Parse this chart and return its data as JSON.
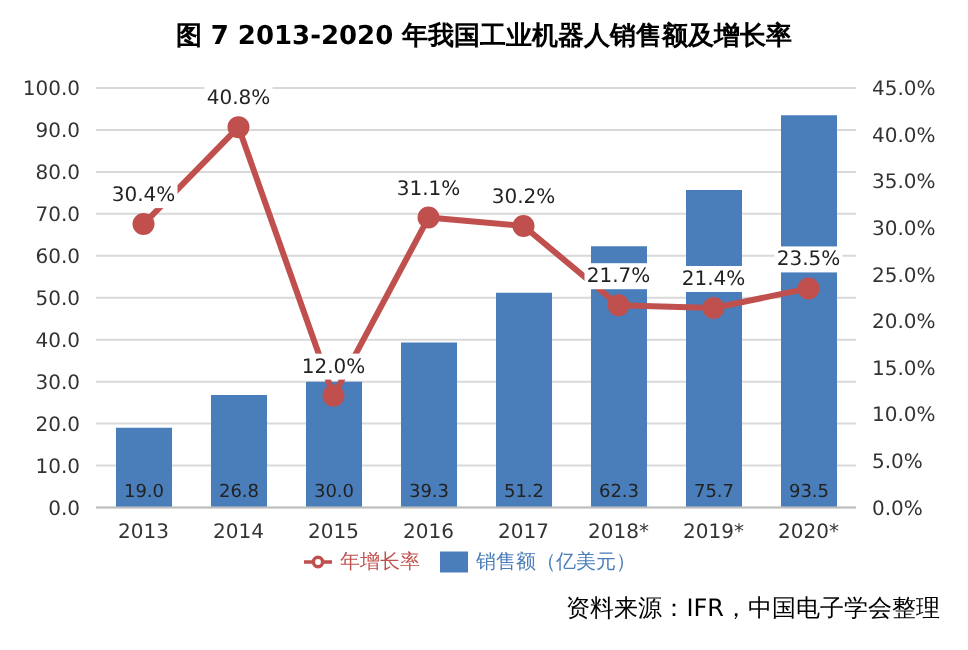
{
  "chart_data": {
    "type": "bar",
    "title": "图 7   2013-2020 年我国工业机器人销售额及增长率",
    "categories": [
      "2013",
      "2014",
      "2015",
      "2016",
      "2017",
      "2018*",
      "2019*",
      "2020*"
    ],
    "series": [
      {
        "name": "销售额（亿美元）",
        "color": "#4a7ebb",
        "values": [
          19.0,
          26.8,
          30.0,
          39.3,
          51.2,
          62.3,
          75.7,
          93.5
        ],
        "value_labels": [
          "19.0",
          "26.8",
          "30.0",
          "39.3",
          "51.2",
          "62.3",
          "75.7",
          "93.5"
        ]
      },
      {
        "name": "年增长率",
        "type": "line",
        "axis": "y2",
        "color": "#c0504d",
        "marker": "circle",
        "values": [
          30.4,
          40.8,
          12.0,
          31.1,
          30.2,
          21.7,
          21.4,
          23.5
        ],
        "value_labels": [
          "30.4%",
          "40.8%",
          "12.0%",
          "31.1%",
          "30.2%",
          "21.7%",
          "21.4%",
          "23.5%"
        ]
      }
    ],
    "ylim": [
      0,
      100
    ],
    "yticks": [
      {
        "value": 0,
        "label": "0.0"
      },
      {
        "value": 10,
        "label": "10.0"
      },
      {
        "value": 20,
        "label": "20.0"
      },
      {
        "value": 30,
        "label": "30.0"
      },
      {
        "value": 40,
        "label": "40.0"
      },
      {
        "value": 50,
        "label": "50.0"
      },
      {
        "value": 60,
        "label": "60.0"
      },
      {
        "value": 70,
        "label": "70.0"
      },
      {
        "value": 80,
        "label": "80.0"
      },
      {
        "value": 90,
        "label": "90.0"
      },
      {
        "value": 100,
        "label": "100.0"
      }
    ],
    "y2lim": [
      0,
      45
    ],
    "y2ticks": [
      {
        "value": 0,
        "label": "0.0%"
      },
      {
        "value": 5,
        "label": "5.0%"
      },
      {
        "value": 10,
        "label": "10.0%"
      },
      {
        "value": 15,
        "label": "15.0%"
      },
      {
        "value": 20,
        "label": "20.0%"
      },
      {
        "value": 25,
        "label": "25.0%"
      },
      {
        "value": 30,
        "label": "30.0%"
      },
      {
        "value": 35,
        "label": "35.0%"
      },
      {
        "value": 40,
        "label": "40.0%"
      },
      {
        "value": 45,
        "label": "45.0%"
      }
    ],
    "grid": "y",
    "legend": "bottom",
    "annotations": [
      "资料来源：IFR，中国电子学会整理"
    ]
  }
}
